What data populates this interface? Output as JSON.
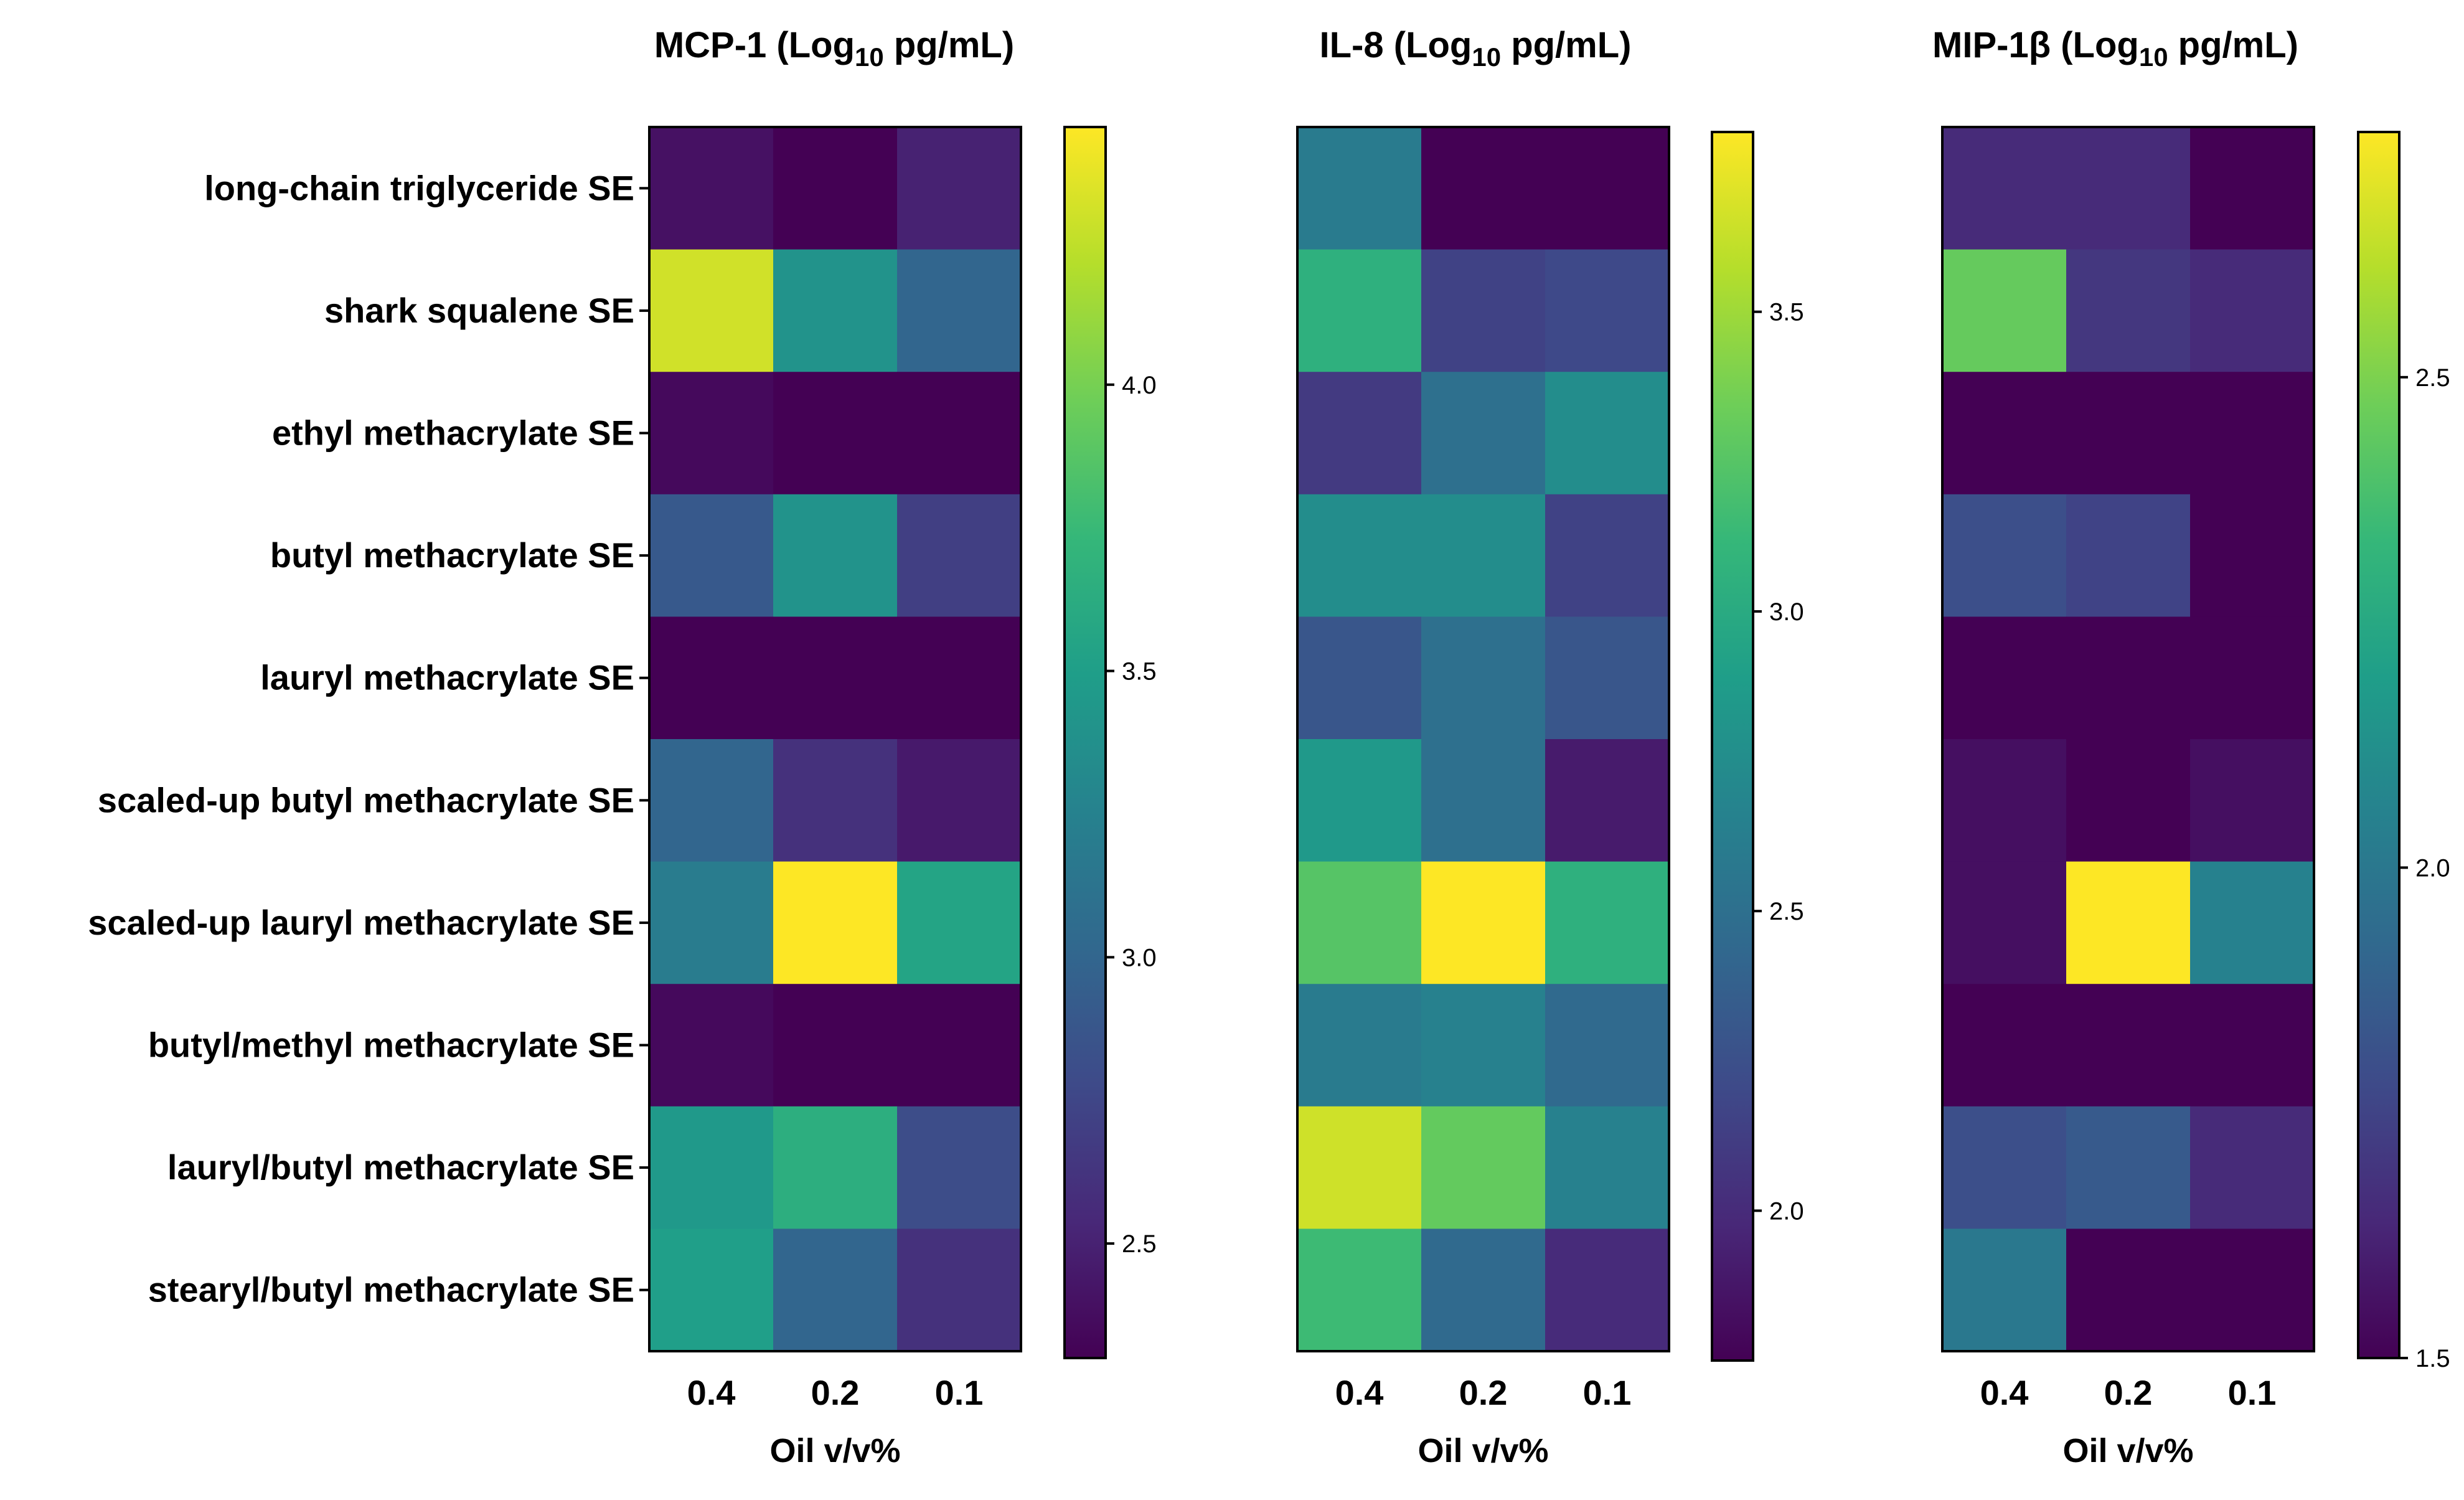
{
  "colormap": [
    "#440154",
    "#482878",
    "#3e4a89",
    "#31688e",
    "#26828e",
    "#1f9e89",
    "#35b779",
    "#6ece58",
    "#b5de2b",
    "#fde725"
  ],
  "chart_data": [
    {
      "type": "heatmap",
      "title_main": "MCP-1 (Log",
      "title_sub": "10",
      "title_unit": " pg/mL)",
      "xlabel": "Oil v/v%",
      "x": [
        "0.4",
        "0.2",
        "0.1"
      ],
      "y": [
        "long-chain triglyceride SE",
        "shark squalene SE",
        "ethyl methacrylate SE",
        "butyl methacrylate SE",
        "lauryl methacrylate SE",
        "scaled-up butyl methacrylate SE",
        "scaled-up lauryl methacrylate SE",
        "butyl/methyl methacrylate SE",
        "lauryl/butyl methacrylate SE",
        "stearyl/butyl methacrylate SE"
      ],
      "values": [
        [
          2.4,
          2.3,
          2.5
        ],
        [
          4.3,
          3.4,
          3.0
        ],
        [
          2.35,
          2.3,
          2.3
        ],
        [
          2.9,
          3.4,
          2.7
        ],
        [
          2.3,
          2.3,
          2.3
        ],
        [
          3.0,
          2.6,
          2.45
        ],
        [
          3.2,
          4.45,
          3.55
        ],
        [
          2.35,
          2.3,
          2.3
        ],
        [
          3.45,
          3.65,
          2.8
        ],
        [
          3.5,
          3.0,
          2.6
        ]
      ],
      "colorbar_range": [
        2.3,
        4.45
      ],
      "colorbar_ticks": [
        "2.5",
        "3.0",
        "3.5",
        "4.0"
      ]
    },
    {
      "type": "heatmap",
      "title_main": "IL-8 (Log",
      "title_sub": "10",
      "title_unit": " pg/mL)",
      "xlabel": "Oil v/v%",
      "x": [
        "0.4",
        "0.2",
        "0.1"
      ],
      "y": [
        "long-chain triglyceride SE",
        "shark squalene SE",
        "ethyl methacrylate SE",
        "butyl methacrylate SE",
        "lauryl methacrylate SE",
        "scaled-up butyl methacrylate SE",
        "scaled-up lauryl methacrylate SE",
        "butyl/methyl methacrylate SE",
        "lauryl/butyl methacrylate SE",
        "stearyl/butyl methacrylate SE"
      ],
      "values": [
        [
          2.6,
          1.75,
          1.75
        ],
        [
          3.05,
          2.15,
          2.2
        ],
        [
          2.1,
          2.5,
          2.75
        ],
        [
          2.75,
          2.75,
          2.15
        ],
        [
          2.3,
          2.5,
          2.3
        ],
        [
          2.85,
          2.5,
          1.9
        ],
        [
          3.25,
          3.8,
          3.05
        ],
        [
          2.6,
          2.65,
          2.45
        ],
        [
          3.65,
          3.3,
          2.65
        ],
        [
          3.15,
          2.45,
          2.0
        ]
      ],
      "colorbar_range": [
        1.75,
        3.8
      ],
      "colorbar_ticks": [
        "2.0",
        "2.5",
        "3.0",
        "3.5"
      ]
    },
    {
      "type": "heatmap",
      "title_main": "MIP-1β (Log",
      "title_sub": "10",
      "title_unit": " pg/mL)",
      "xlabel": "Oil v/v%",
      "x": [
        "0.4",
        "0.2",
        "0.1"
      ],
      "y": [
        "long-chain triglyceride SE",
        "shark squalene SE",
        "ethyl methacrylate SE",
        "butyl methacrylate SE",
        "lauryl methacrylate SE",
        "scaled-up butyl methacrylate SE",
        "scaled-up lauryl methacrylate SE",
        "butyl/methyl methacrylate SE",
        "lauryl/butyl methacrylate SE",
        "stearyl/butyl methacrylate SE"
      ],
      "values": [
        [
          1.65,
          1.65,
          1.5
        ],
        [
          2.45,
          1.7,
          1.65
        ],
        [
          1.5,
          1.5,
          1.5
        ],
        [
          1.8,
          1.75,
          1.5
        ],
        [
          1.5,
          1.5,
          1.5
        ],
        [
          1.55,
          1.5,
          1.55
        ],
        [
          1.55,
          2.75,
          2.05
        ],
        [
          1.5,
          1.5,
          1.5
        ],
        [
          1.8,
          1.85,
          1.65
        ],
        [
          2.0,
          1.5,
          1.5
        ]
      ],
      "colorbar_range": [
        1.5,
        2.75
      ],
      "colorbar_ticks": [
        "1.5",
        "2.0",
        "2.5"
      ]
    }
  ]
}
